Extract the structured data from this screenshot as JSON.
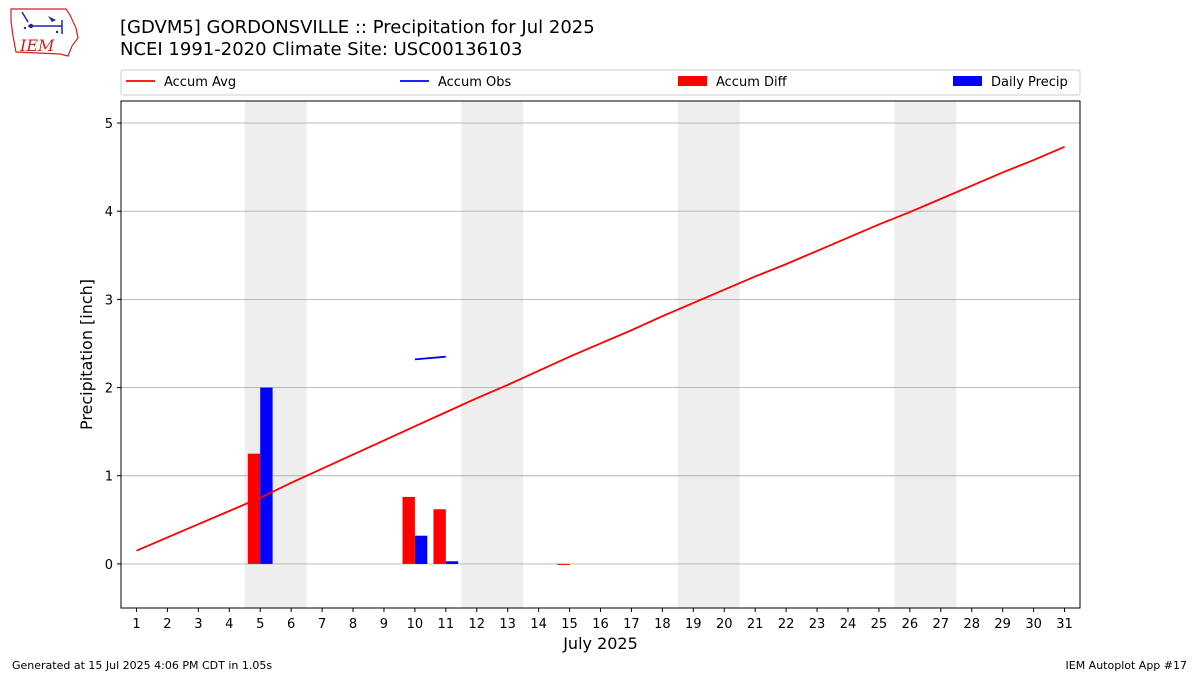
{
  "title_line1": "[GDVM5] GORDONSVILLE :: Precipitation for Jul 2025",
  "title_line2": "NCEI 1991-2020 Climate Site: USC00136103",
  "logo_text": "IEM",
  "footer_left": "Generated at 15 Jul 2025 4:06 PM CDT in 1.05s",
  "footer_right": "IEM Autoplot App #17",
  "colors": {
    "accum_avg": "#ff0000",
    "accum_obs": "#0000ff",
    "accum_diff": "#ff0000",
    "daily_precip": "#0000ff",
    "weekend_shade": "#eeeeee",
    "grid": "#b0b0b0"
  },
  "chart_data": {
    "type": "bar",
    "xlabel": "July 2025",
    "ylabel": "Precipitation [inch]",
    "xlim": [
      0.5,
      31.5
    ],
    "ylim": [
      -0.5,
      5.25
    ],
    "yticks": [
      0,
      1,
      2,
      3,
      4,
      5
    ],
    "x": [
      1,
      2,
      3,
      4,
      5,
      6,
      7,
      8,
      9,
      10,
      11,
      12,
      13,
      14,
      15,
      16,
      17,
      18,
      19,
      20,
      21,
      22,
      23,
      24,
      25,
      26,
      27,
      28,
      29,
      30,
      31
    ],
    "grid": "horizontal",
    "legend_placement": "top, above plot",
    "weekend_spans": [
      [
        4.5,
        6.5
      ],
      [
        11.5,
        13.5
      ],
      [
        18.5,
        20.5
      ],
      [
        25.5,
        27.5
      ]
    ],
    "legend": [
      "Accum Avg",
      "Accum Obs",
      "Accum Diff",
      "Daily Precip"
    ],
    "series": [
      {
        "name": "Accum Avg",
        "type": "line",
        "x": [
          1,
          2,
          3,
          4,
          5,
          6,
          7,
          8,
          9,
          10,
          11,
          12,
          13,
          14,
          15,
          16,
          17,
          18,
          19,
          20,
          21,
          22,
          23,
          24,
          25,
          26,
          27,
          28,
          29,
          30,
          31
        ],
        "values": [
          0.15,
          0.3,
          0.45,
          0.6,
          0.75,
          0.92,
          1.08,
          1.24,
          1.4,
          1.56,
          1.72,
          1.88,
          2.03,
          2.19,
          2.35,
          2.5,
          2.65,
          2.81,
          2.96,
          3.11,
          3.26,
          3.4,
          3.55,
          3.7,
          3.85,
          3.99,
          4.14,
          4.29,
          4.44,
          4.58,
          4.73
        ]
      },
      {
        "name": "Accum Obs",
        "type": "line",
        "x": [
          10,
          11
        ],
        "values": [
          2.32,
          2.35
        ]
      },
      {
        "name": "Accum Diff",
        "type": "bar",
        "x": [
          5,
          10,
          11,
          15
        ],
        "values": [
          1.25,
          0.76,
          0.62,
          -0.01
        ]
      },
      {
        "name": "Daily Precip",
        "type": "bar",
        "x": [
          5,
          10,
          11
        ],
        "values": [
          2.0,
          0.32,
          0.03
        ]
      }
    ]
  }
}
